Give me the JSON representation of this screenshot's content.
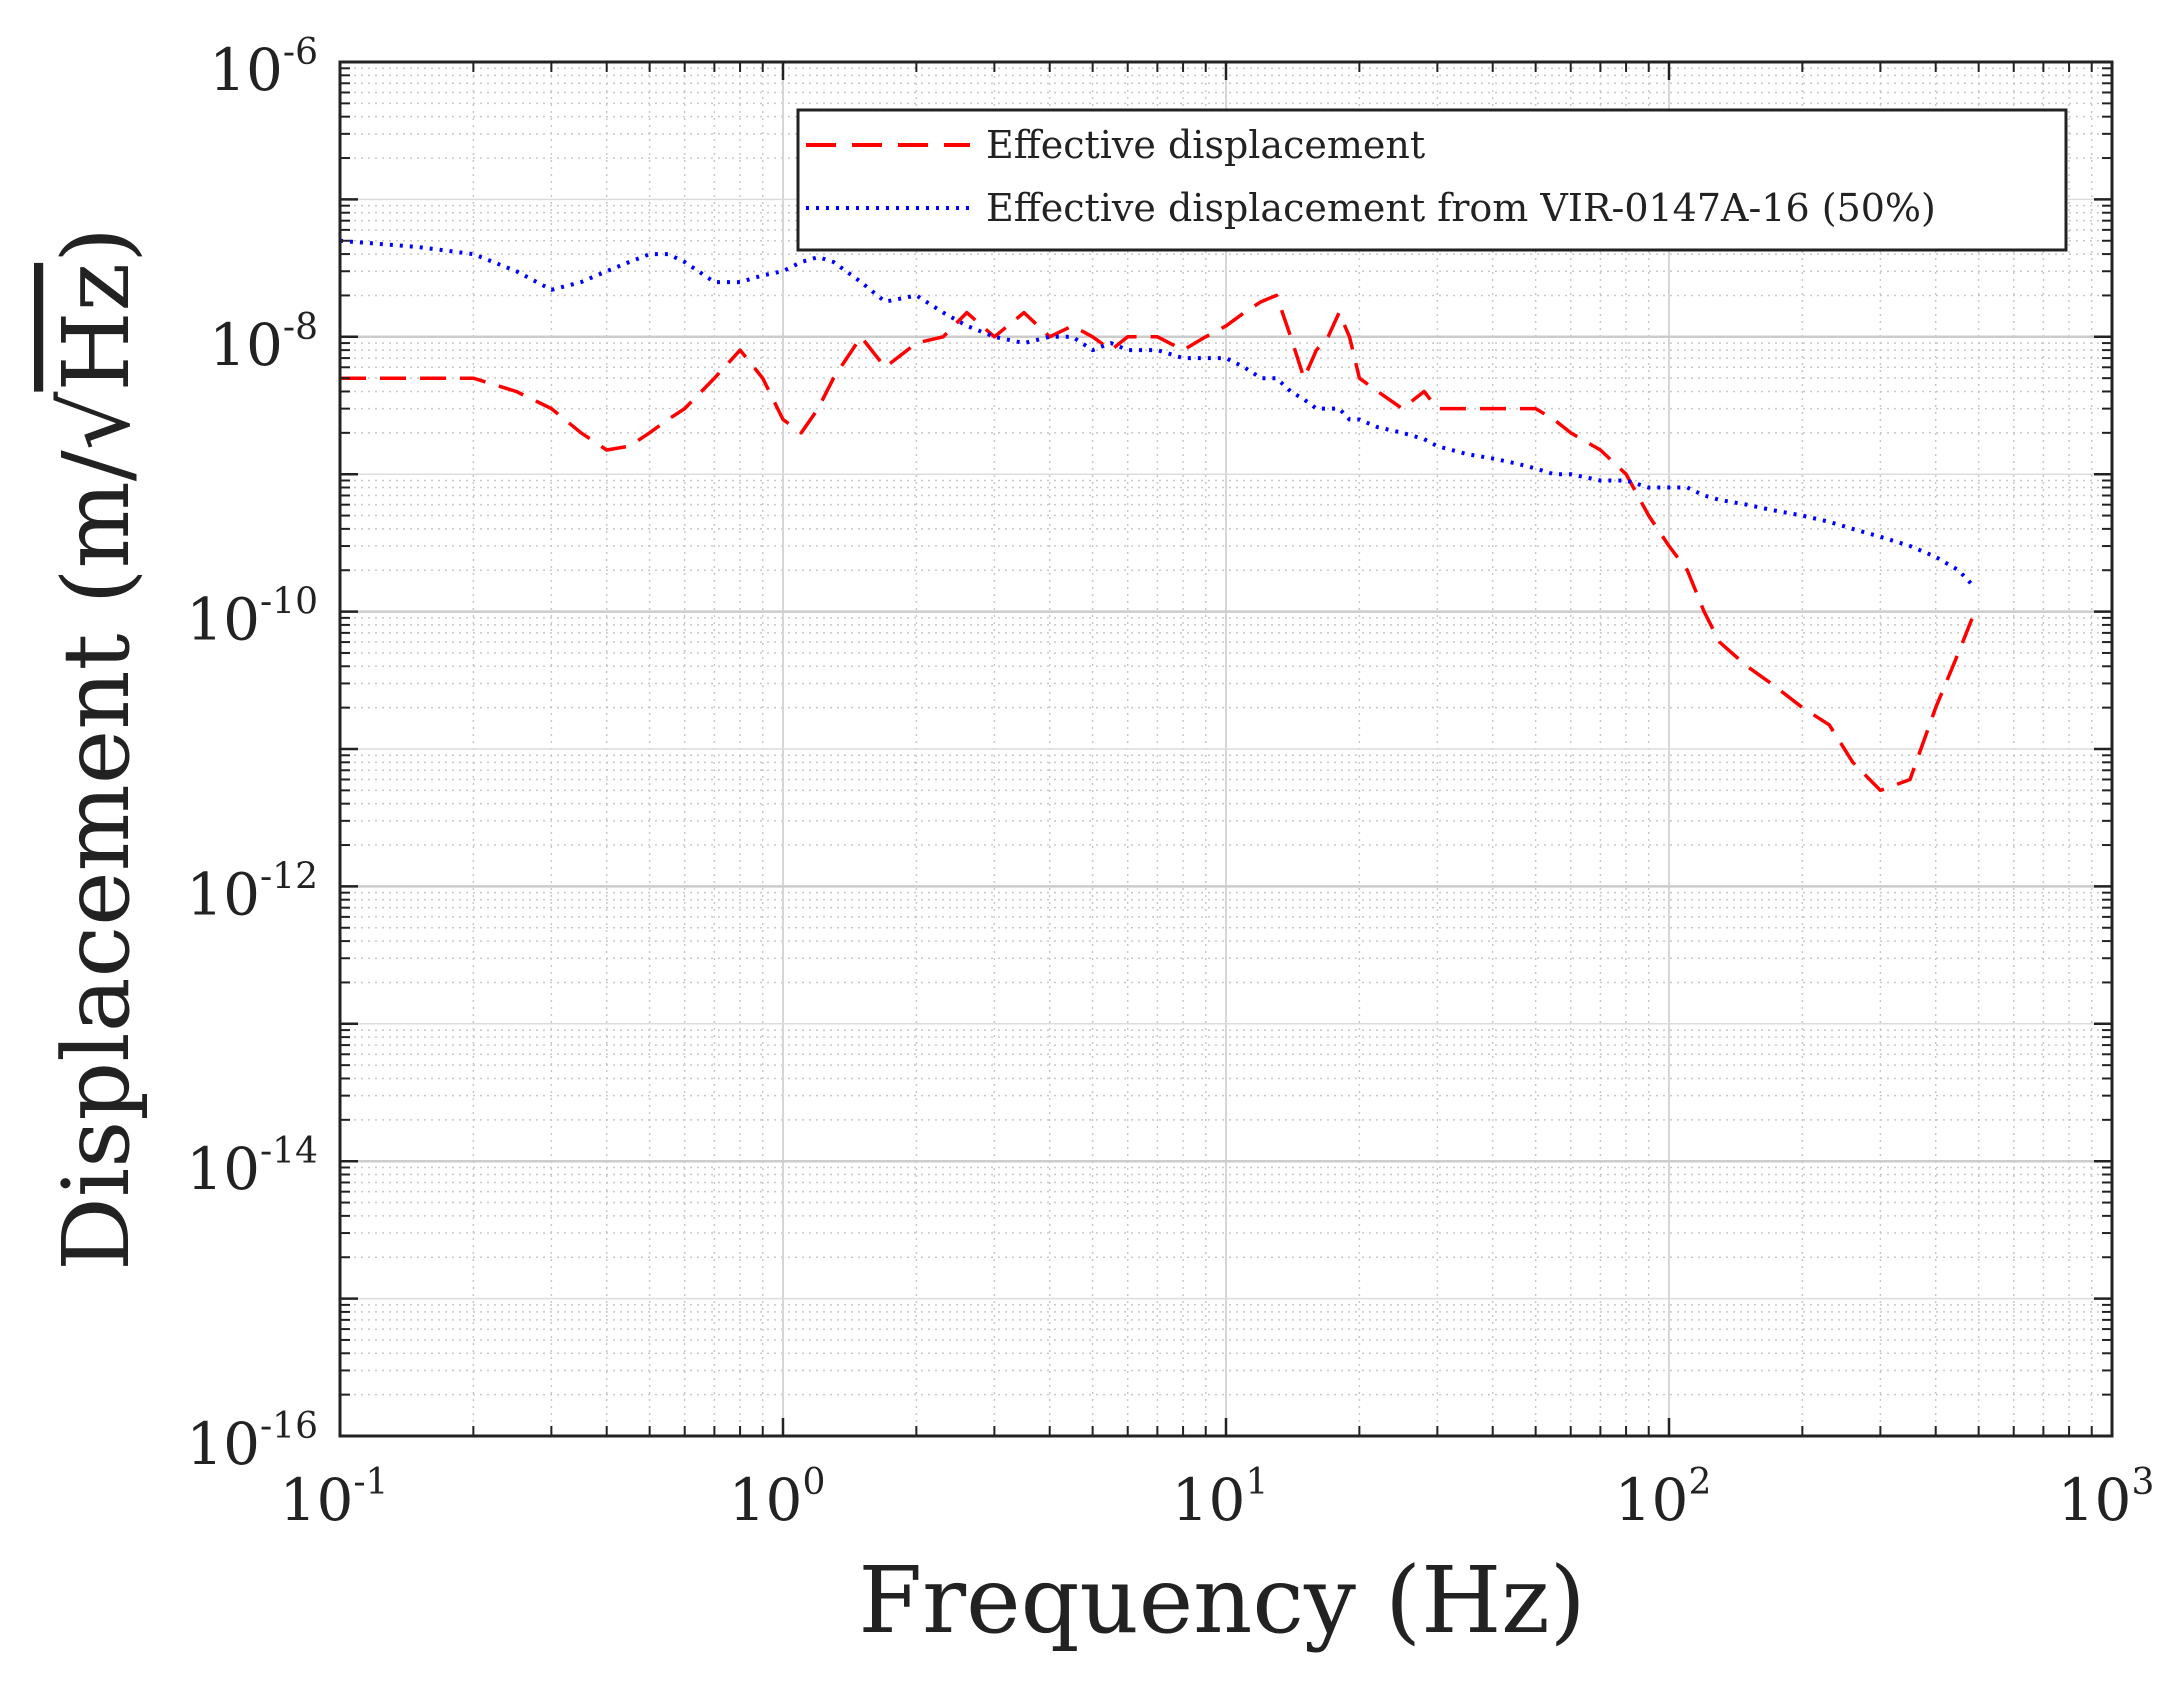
{
  "chart_data": {
    "type": "line",
    "title": "",
    "xlabel": "Frequency (Hz)",
    "ylabel": {
      "prefix": "Displacement (m/",
      "radical": "√",
      "radicand": "Hz",
      "suffix": ")"
    },
    "xscale": "log",
    "yscale": "log",
    "xlim": [
      0.1,
      1000
    ],
    "ylim": [
      1e-16,
      1e-06
    ],
    "grid": true,
    "legend_position": "top-right",
    "x_ticks": [
      {
        "base": "10",
        "exp": "-1"
      },
      {
        "base": "10",
        "exp": "0"
      },
      {
        "base": "10",
        "exp": "1"
      },
      {
        "base": "10",
        "exp": "2"
      },
      {
        "base": "10",
        "exp": "3"
      }
    ],
    "y_ticks": [
      {
        "base": "10",
        "exp": "-16"
      },
      {
        "base": "10",
        "exp": "-14"
      },
      {
        "base": "10",
        "exp": "-12"
      },
      {
        "base": "10",
        "exp": "-10"
      },
      {
        "base": "10",
        "exp": "-8"
      },
      {
        "base": "10",
        "exp": "-6"
      }
    ],
    "series": [
      {
        "name": "Effective displacement",
        "color": "#ff0000",
        "style": "dashed",
        "x": [
          0.1,
          0.15,
          0.2,
          0.25,
          0.3,
          0.35,
          0.4,
          0.45,
          0.5,
          0.55,
          0.6,
          0.7,
          0.8,
          0.9,
          1.0,
          1.1,
          1.2,
          1.3,
          1.5,
          1.7,
          2.0,
          2.3,
          2.6,
          3.0,
          3.5,
          4.0,
          4.5,
          5.0,
          5.5,
          6.0,
          7.0,
          8.0,
          9.0,
          10.0,
          11.0,
          12.0,
          13.0,
          14.0,
          15.0,
          16.0,
          17.0,
          18.0,
          19.0,
          20.0,
          22.0,
          25.0,
          28.0,
          30.0,
          35.0,
          40.0,
          45.0,
          50.0,
          55.0,
          60.0,
          70.0,
          80.0,
          90.0,
          100.0,
          110.0,
          120.0,
          130.0,
          150.0,
          170.0,
          200.0,
          230.0,
          260.0,
          300.0,
          350.0,
          400.0,
          450.0,
          490.0
        ],
        "y": [
          5e-09,
          5e-09,
          5e-09,
          4e-09,
          3e-09,
          2e-09,
          1.5e-09,
          1.6e-09,
          2e-09,
          2.5e-09,
          3e-09,
          5e-09,
          8e-09,
          5e-09,
          2.5e-09,
          2e-09,
          3e-09,
          5e-09,
          1e-08,
          6e-09,
          9e-09,
          1e-08,
          1.5e-08,
          1e-08,
          1.5e-08,
          1e-08,
          1.2e-08,
          1e-08,
          8e-09,
          1e-08,
          1e-08,
          8e-09,
          1e-08,
          1.2e-08,
          1.5e-08,
          1.8e-08,
          2e-08,
          1e-08,
          5e-09,
          8e-09,
          1e-08,
          1.5e-08,
          1e-08,
          5e-09,
          4e-09,
          3e-09,
          4e-09,
          3e-09,
          3e-09,
          3e-09,
          3e-09,
          3e-09,
          2.5e-09,
          2e-09,
          1.5e-09,
          1e-09,
          5e-10,
          3e-10,
          2e-10,
          1e-10,
          6e-11,
          4e-11,
          3e-11,
          2e-11,
          1.5e-11,
          8e-12,
          5e-12,
          6e-12,
          2e-11,
          5e-11,
          1e-10
        ]
      },
      {
        "name": "Effective displacement from VIR-0147A-16 (50%)",
        "color": "#0000ff",
        "style": "dotted",
        "x": [
          0.1,
          0.15,
          0.2,
          0.25,
          0.3,
          0.35,
          0.4,
          0.45,
          0.5,
          0.55,
          0.6,
          0.7,
          0.8,
          0.9,
          1.0,
          1.1,
          1.2,
          1.3,
          1.5,
          1.7,
          2.0,
          2.3,
          2.6,
          3.0,
          3.5,
          4.0,
          4.5,
          5.0,
          5.5,
          6.0,
          7.0,
          8.0,
          9.0,
          10.0,
          11.0,
          12.0,
          13.0,
          14.0,
          15.0,
          16.0,
          17.0,
          18.0,
          19.0,
          20.0,
          22.0,
          25.0,
          28.0,
          30.0,
          35.0,
          40.0,
          45.0,
          50.0,
          55.0,
          60.0,
          70.0,
          80.0,
          90.0,
          100.0,
          110.0,
          120.0,
          130.0,
          150.0,
          170.0,
          200.0,
          230.0,
          260.0,
          300.0,
          350.0,
          400.0,
          450.0,
          490.0
        ],
        "y": [
          5e-08,
          4.5e-08,
          4e-08,
          3e-08,
          2.2e-08,
          2.5e-08,
          3e-08,
          3.5e-08,
          4e-08,
          4e-08,
          3.5e-08,
          2.5e-08,
          2.5e-08,
          2.8e-08,
          3e-08,
          3.5e-08,
          3.8e-08,
          3.5e-08,
          2.5e-08,
          1.8e-08,
          2e-08,
          1.5e-08,
          1.2e-08,
          1e-08,
          9e-09,
          1e-08,
          1e-08,
          8e-09,
          9e-09,
          8e-09,
          8e-09,
          7e-09,
          7e-09,
          7e-09,
          6e-09,
          5e-09,
          5e-09,
          4e-09,
          3.5e-09,
          3e-09,
          3e-09,
          3e-09,
          2.5e-09,
          2.5e-09,
          2.2e-09,
          2e-09,
          1.8e-09,
          1.6e-09,
          1.4e-09,
          1.3e-09,
          1.2e-09,
          1.1e-09,
          1e-09,
          1e-09,
          9e-10,
          9e-10,
          8e-10,
          8e-10,
          8e-10,
          7e-10,
          6.5e-10,
          6e-10,
          5.5e-10,
          5e-10,
          4.5e-10,
          4e-10,
          3.5e-10,
          3e-10,
          2.5e-10,
          2e-10,
          1.5e-10
        ]
      }
    ]
  }
}
